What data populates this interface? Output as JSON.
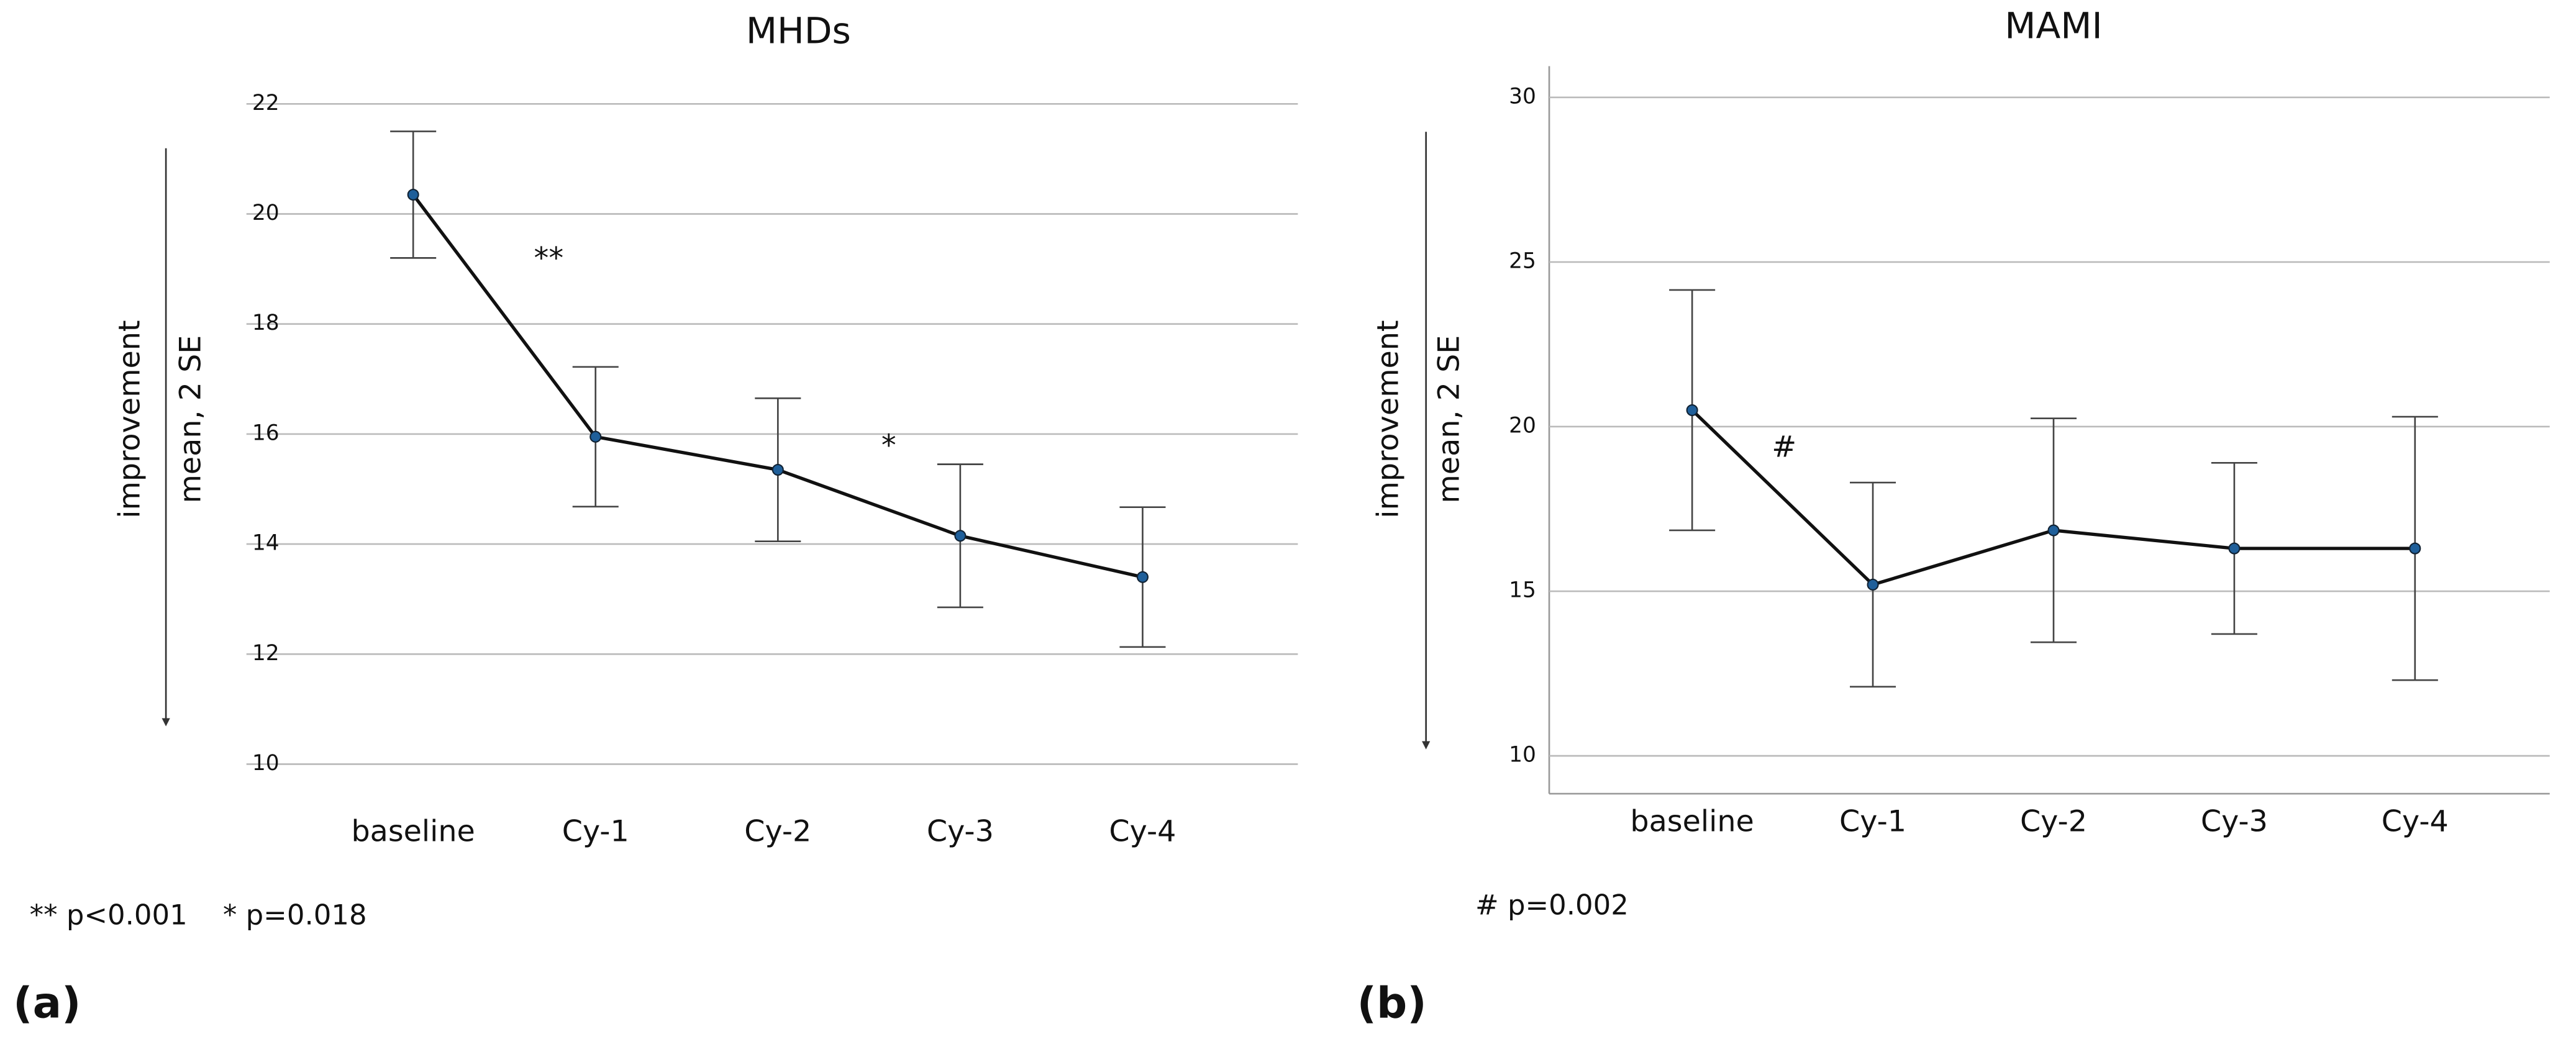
{
  "chart_data": [
    {
      "type": "line",
      "title": "MHDs",
      "ylabel": "mean,  2 SE",
      "direction_label": "improvement",
      "categories": [
        "baseline",
        "Cy-1",
        "Cy-2",
        "Cy-3",
        "Cy-4"
      ],
      "values": [
        20.35,
        15.95,
        15.35,
        14.15,
        13.4
      ],
      "errors": [
        1.15,
        1.27,
        1.3,
        1.3,
        1.27
      ],
      "color": "#1f5f9a",
      "ylim": [
        10,
        22
      ],
      "yticks": [
        10,
        12,
        14,
        16,
        18,
        20,
        22
      ],
      "grid": true,
      "annotations": [
        "**",
        "*"
      ],
      "note": "** p<0.001    * p=0.018",
      "panel_label": "(a)"
    },
    {
      "type": "line",
      "title": "MAMI",
      "ylabel": "mean,  2 SE",
      "direction_label": "improvement",
      "categories": [
        "baseline",
        "Cy-1",
        "Cy-2",
        "Cy-3",
        "Cy-4"
      ],
      "values": [
        20.5,
        15.2,
        16.85,
        16.3,
        16.3
      ],
      "errors": [
        3.65,
        3.1,
        3.4,
        2.6,
        4.0
      ],
      "color": "#1f5f9a",
      "ylim": [
        8.85,
        30.95
      ],
      "yticks": [
        10,
        15,
        20,
        25,
        30
      ],
      "grid": true,
      "annotations": [
        "#"
      ],
      "note": "# p=0.002",
      "panel_label": "(b)"
    }
  ]
}
